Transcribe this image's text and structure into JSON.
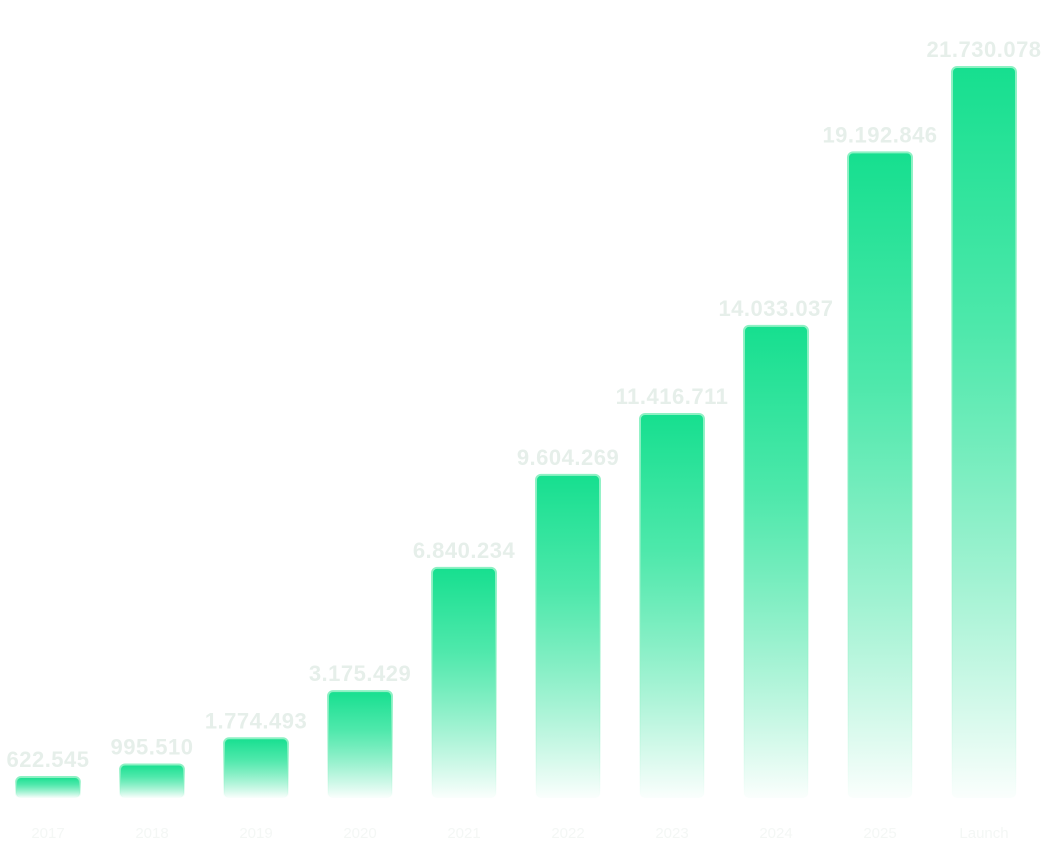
{
  "chart_data": {
    "type": "bar",
    "categories": [
      "2017",
      "2018",
      "2019",
      "2020",
      "2021",
      "2022",
      "2023",
      "2024",
      "2025",
      "Launch"
    ],
    "values": [
      622545,
      995510,
      1774493,
      3175429,
      6840234,
      9604269,
      11416711,
      14033037,
      19192846,
      21730078
    ],
    "value_labels": [
      "622.545",
      "995.510",
      "1.774.493",
      "3.175.429",
      "6.840.234",
      "9.604.269",
      "11.416.711",
      "14.033.037",
      "19.192.846",
      "21.730.078"
    ],
    "title": "",
    "xlabel": "",
    "ylabel": "",
    "ylim": [
      0,
      21730078
    ],
    "grid": false,
    "legend": "none",
    "colors": {
      "bar_top": "#16df8f",
      "bar_bottom": "#ffffff",
      "bar_stroke": "#8ef1c4",
      "value_label": "#e6efea",
      "category_label": "#f4f7f5"
    }
  }
}
